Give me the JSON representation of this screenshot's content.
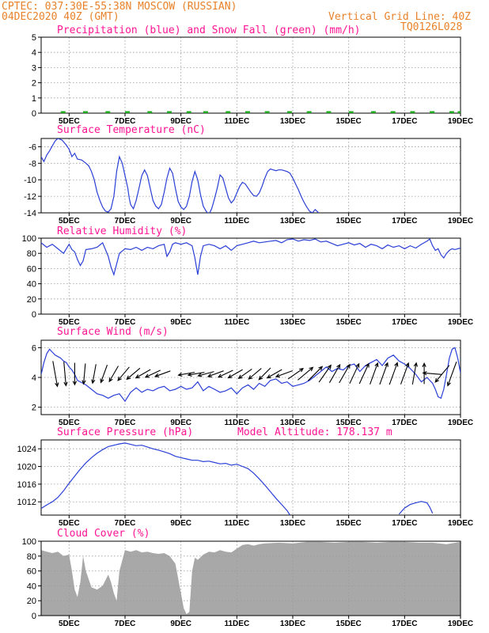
{
  "header": {
    "line1_left": "CPTEC:  037:30E-55:38N  MOSCOW (RUSSIAN)",
    "line2_left": "04DEC2020 40Z (GMT)",
    "line2_right": "Vertical Grid Line: 40Z",
    "code": "TQ0126L028"
  },
  "x_axis": {
    "domain": [
      4.0,
      19.0
    ],
    "ticks": [
      {
        "day": 5,
        "label": "5DEC"
      },
      {
        "day": 7,
        "label": "7DEC"
      },
      {
        "day": 9,
        "label": "9DEC"
      },
      {
        "day": 11,
        "label": "11DEC"
      },
      {
        "day": 13,
        "label": "13DEC"
      },
      {
        "day": 15,
        "label": "15DEC"
      },
      {
        "day": 17,
        "label": "17DEC"
      },
      {
        "day": 19,
        "label": "19DEC"
      }
    ]
  },
  "colors": {
    "line": "#2a3fd6",
    "snow": "#1faa1f",
    "title": "#ff1493",
    "header": "#e8822a",
    "cloud": "#a8a8a8"
  },
  "chart_data": [
    {
      "type": "bar",
      "title": "Precipitation (blue) and Snow Fall (green) (mm/h)",
      "ylim": [
        0,
        5
      ],
      "yticks": [
        0,
        1,
        2,
        3,
        4,
        5
      ],
      "snow_series": {
        "name": "Snow Fall",
        "x": [
          4.7,
          5.5,
          6.3,
          7.0,
          7.8,
          8.5,
          9.2,
          9.8,
          10.6,
          11.3,
          12.0,
          12.8,
          13.5,
          14.2,
          15.0,
          15.8,
          16.5,
          17.2,
          17.9,
          18.6,
          18.9
        ],
        "values": [
          0.02,
          0.03,
          0.02,
          0.02,
          0.03,
          0.02,
          0.02,
          0.02,
          0.02,
          0.03,
          0.02,
          0.02,
          0.02,
          0.02,
          0.02,
          0.02,
          0.02,
          0.02,
          0.02,
          0.03,
          0.05
        ]
      }
    },
    {
      "type": "line",
      "title": "Surface Temperature (nC)",
      "ylim": [
        -14,
        -5
      ],
      "yticks": [
        -14,
        -12,
        -10,
        -8,
        -6
      ],
      "series": [
        {
          "x": [
            4.0,
            4.1,
            4.2,
            4.3,
            4.4,
            4.5,
            4.6,
            4.75,
            4.9,
            5.0,
            5.1,
            5.2,
            5.3,
            5.45,
            5.6,
            5.7,
            5.8,
            5.9,
            6.0,
            6.1,
            6.2,
            6.3,
            6.4,
            6.5,
            6.6,
            6.7,
            6.8,
            6.9,
            7.0,
            7.1,
            7.15,
            7.2,
            7.3,
            7.4,
            7.5,
            7.6,
            7.7,
            7.8,
            7.9,
            8.0,
            8.1,
            8.2,
            8.3,
            8.4,
            8.5,
            8.6,
            8.7,
            8.8,
            8.9,
            9.0,
            9.1,
            9.2,
            9.3,
            9.4,
            9.5,
            9.6,
            9.7,
            9.8,
            9.9,
            10.0,
            10.1,
            10.2,
            10.3,
            10.4,
            10.5,
            10.6,
            10.7,
            10.8,
            10.9,
            11.0,
            11.1,
            11.2,
            11.3,
            11.4,
            11.5,
            11.6,
            11.7,
            11.8,
            11.9,
            12.0,
            12.1,
            12.2,
            12.3,
            12.4,
            12.5,
            12.6,
            12.7,
            12.8,
            12.9,
            13.0,
            13.1,
            13.2,
            13.3,
            13.4,
            13.5,
            13.6,
            13.7,
            13.8,
            13.9,
            14.0
          ],
          "values": [
            -7.2,
            -7.8,
            -7.0,
            -6.5,
            -5.9,
            -5.3,
            -5.0,
            -5.2,
            -5.8,
            -6.3,
            -7.2,
            -6.8,
            -7.5,
            -7.6,
            -8.0,
            -8.3,
            -9.0,
            -10.0,
            -11.5,
            -12.5,
            -13.3,
            -13.8,
            -13.9,
            -13.5,
            -12.0,
            -9.0,
            -7.2,
            -8.0,
            -9.5,
            -11.0,
            -12.2,
            -13.0,
            -13.5,
            -12.5,
            -11.0,
            -9.5,
            -8.8,
            -9.5,
            -11.0,
            -12.5,
            -13.2,
            -13.5,
            -13.0,
            -11.5,
            -9.8,
            -8.6,
            -9.2,
            -11.0,
            -12.6,
            -13.3,
            -13.6,
            -13.2,
            -12.0,
            -10.2,
            -9.0,
            -10.0,
            -11.8,
            -13.2,
            -13.8,
            -14.2,
            -13.5,
            -12.3,
            -11.0,
            -9.4,
            -9.8,
            -11.0,
            -12.2,
            -12.8,
            -12.4,
            -11.6,
            -10.8,
            -10.3,
            -10.5,
            -11.0,
            -11.5,
            -11.9,
            -12.0,
            -11.6,
            -10.8,
            -9.8,
            -9.0,
            -8.7,
            -8.8,
            -8.9,
            -8.8,
            -8.8,
            -8.9,
            -9.0,
            -9.2,
            -9.8,
            -10.5,
            -11.2,
            -12.0,
            -12.7,
            -13.3,
            -13.8,
            -14.0,
            -13.6,
            -13.9,
            -14.5
          ]
        }
      ]
    },
    {
      "type": "line",
      "title": "Relative Humidity (%)",
      "ylim": [
        0,
        100
      ],
      "yticks": [
        0,
        20,
        40,
        60,
        80,
        100
      ],
      "series": [
        {
          "x": [
            4.0,
            4.2,
            4.4,
            4.6,
            4.8,
            5.0,
            5.1,
            5.2,
            5.3,
            5.4,
            5.5,
            5.6,
            5.8,
            6.0,
            6.2,
            6.4,
            6.5,
            6.6,
            6.7,
            6.8,
            7.0,
            7.2,
            7.4,
            7.6,
            7.8,
            8.0,
            8.2,
            8.4,
            8.5,
            8.6,
            8.7,
            8.8,
            9.0,
            9.2,
            9.4,
            9.5,
            9.6,
            9.7,
            9.8,
            10.0,
            10.2,
            10.4,
            10.6,
            10.8,
            11.0,
            11.2,
            11.4,
            11.6,
            11.8,
            12.0,
            12.2,
            12.4,
            12.6,
            12.8,
            13.0,
            13.2,
            13.4,
            13.6,
            13.8,
            14.0,
            14.2,
            14.4,
            14.6,
            14.8,
            15.0,
            15.2,
            15.4,
            15.6,
            15.8,
            16.0,
            16.2,
            16.4,
            16.6,
            16.8,
            17.0,
            17.2,
            17.4,
            17.6,
            17.8,
            17.9,
            18.0,
            18.1,
            18.2,
            18.3,
            18.4,
            18.5,
            18.6,
            18.7,
            18.8,
            19.0
          ],
          "values": [
            94,
            88,
            92,
            86,
            80,
            92,
            85,
            82,
            72,
            64,
            70,
            85,
            86,
            88,
            94,
            76,
            62,
            52,
            66,
            80,
            86,
            85,
            88,
            84,
            88,
            86,
            90,
            92,
            76,
            82,
            92,
            94,
            92,
            94,
            90,
            74,
            52,
            76,
            90,
            92,
            90,
            86,
            90,
            84,
            90,
            92,
            94,
            96,
            94,
            95,
            96,
            97,
            94,
            98,
            99,
            96,
            98,
            97,
            99,
            95,
            96,
            93,
            90,
            92,
            94,
            91,
            93,
            88,
            92,
            90,
            86,
            91,
            88,
            90,
            86,
            90,
            87,
            92,
            96,
            99,
            90,
            84,
            86,
            78,
            74,
            80,
            84,
            86,
            85,
            87
          ]
        }
      ]
    },
    {
      "type": "line",
      "title": "Surface Wind (m/s)",
      "ylim": [
        1.5,
        6.5
      ],
      "yticks": [
        2,
        4,
        6
      ],
      "series": [
        {
          "x": [
            4.0,
            4.1,
            4.2,
            4.3,
            4.4,
            4.5,
            4.6,
            4.7,
            4.8,
            4.9,
            5.0,
            5.1,
            5.2,
            5.3,
            5.4,
            5.5,
            5.6,
            5.8,
            6.0,
            6.2,
            6.4,
            6.6,
            6.8,
            7.0,
            7.2,
            7.4,
            7.6,
            7.8,
            8.0,
            8.2,
            8.4,
            8.6,
            8.8,
            9.0,
            9.2,
            9.4,
            9.6,
            9.8,
            10.0,
            10.2,
            10.4,
            10.6,
            10.8,
            11.0,
            11.2,
            11.4,
            11.6,
            11.8,
            12.0,
            12.2,
            12.4,
            12.6,
            12.8,
            13.0,
            13.2,
            13.4,
            13.6,
            13.8,
            14.0,
            14.2,
            14.4,
            14.6,
            14.8,
            15.0,
            15.2,
            15.4,
            15.6,
            15.8,
            16.0,
            16.2,
            16.4,
            16.6,
            16.8,
            17.0,
            17.2,
            17.4,
            17.6,
            17.8,
            18.0,
            18.1,
            18.2,
            18.3,
            18.4,
            18.5,
            18.6,
            18.7,
            18.8,
            18.9,
            19.0
          ],
          "values": [
            4.2,
            5.0,
            5.6,
            5.9,
            5.7,
            5.5,
            5.4,
            5.3,
            5.1,
            5.0,
            4.7,
            4.5,
            4.2,
            3.8,
            3.7,
            3.6,
            3.5,
            3.2,
            2.9,
            2.8,
            2.6,
            2.8,
            2.9,
            2.4,
            3.0,
            3.3,
            3.0,
            3.2,
            3.1,
            3.3,
            3.4,
            3.1,
            3.2,
            3.4,
            3.2,
            3.3,
            3.7,
            3.1,
            3.4,
            3.2,
            3.0,
            3.1,
            3.3,
            2.9,
            3.3,
            3.5,
            3.2,
            3.6,
            3.4,
            3.8,
            3.9,
            3.6,
            3.7,
            3.4,
            3.5,
            3.6,
            3.8,
            4.1,
            4.4,
            4.7,
            4.4,
            4.6,
            4.5,
            4.8,
            4.9,
            4.4,
            4.8,
            5.0,
            5.2,
            4.8,
            5.3,
            5.5,
            5.1,
            4.9,
            4.6,
            4.2,
            3.7,
            4.0,
            3.6,
            3.2,
            2.7,
            2.6,
            3.2,
            4.2,
            5.3,
            5.9,
            6.0,
            5.3,
            4.3
          ]
        }
      ],
      "wind_vectors": {
        "x": [
          4.5,
          4.85,
          5.2,
          5.55,
          5.9,
          6.25,
          6.6,
          6.95,
          7.3,
          7.65,
          8.0,
          8.35,
          9.2,
          9.55,
          9.9,
          10.25,
          10.6,
          10.95,
          11.3,
          11.65,
          12.0,
          12.35,
          12.7,
          13.1,
          13.45,
          13.8,
          14.15,
          14.5,
          14.85,
          15.2,
          15.55,
          15.9,
          16.25,
          16.6,
          17.0,
          17.35,
          17.7,
          18.0,
          18.35,
          18.7
        ],
        "magnitude": [
          5.9,
          5.4,
          4.8,
          4.4,
          4.1,
          3.9,
          3.7,
          3.6,
          3.5,
          3.4,
          3.3,
          3.2,
          3.3,
          3.3,
          3.3,
          3.3,
          3.2,
          3.3,
          3.2,
          3.3,
          3.3,
          3.4,
          3.6,
          3.8,
          4.2,
          4.3,
          4.5,
          4.5,
          4.6,
          4.8,
          4.9,
          5.0,
          5.1,
          5.2,
          5.0,
          4.8,
          4.5,
          4.0,
          4.8,
          5.8
        ],
        "direction_deg": [
          170,
          175,
          180,
          185,
          190,
          200,
          210,
          220,
          230,
          240,
          245,
          250,
          260,
          260,
          255,
          250,
          245,
          240,
          235,
          230,
          225,
          240,
          250,
          55,
          50,
          45,
          35,
          30,
          30,
          25,
          25,
          20,
          20,
          20,
          20,
          10,
          0,
          275,
          220,
          200
        ]
      }
    },
    {
      "type": "line",
      "title": "Surface Pressure (hPa)",
      "annotation": "Model Altitude: 178.137 m",
      "ylim": [
        1009,
        1026
      ],
      "yticks": [
        1012,
        1016,
        1020,
        1024
      ],
      "series": [
        {
          "x": [
            4.0,
            4.2,
            4.4,
            4.6,
            4.8,
            5.0,
            5.2,
            5.4,
            5.6,
            5.8,
            6.0,
            6.2,
            6.4,
            6.6,
            6.8,
            7.0,
            7.2,
            7.4,
            7.6,
            7.8,
            8.0,
            8.2,
            8.4,
            8.6,
            8.8,
            9.0,
            9.2,
            9.4,
            9.6,
            9.8,
            10.0,
            10.2,
            10.4,
            10.6,
            10.8,
            11.0,
            11.2,
            11.4,
            11.6,
            11.8,
            12.0,
            12.2,
            12.4,
            12.6,
            12.8,
            12.9
          ],
          "values": [
            1010.5,
            1011.3,
            1012.0,
            1013.0,
            1014.5,
            1016.2,
            1017.8,
            1019.4,
            1020.8,
            1022.0,
            1023.0,
            1023.8,
            1024.5,
            1024.8,
            1025.1,
            1025.3,
            1025.0,
            1024.7,
            1024.8,
            1024.4,
            1024.0,
            1023.7,
            1023.3,
            1022.9,
            1022.3,
            1022.0,
            1021.7,
            1021.4,
            1021.4,
            1021.1,
            1021.2,
            1020.9,
            1020.6,
            1020.7,
            1020.3,
            1020.5,
            1020.0,
            1019.5,
            1018.5,
            1017.2,
            1015.8,
            1014.3,
            1012.8,
            1011.4,
            1010.0,
            1009.0
          ]
        },
        {
          "x": [
            16.8,
            17.0,
            17.2,
            17.4,
            17.6,
            17.8,
            17.9,
            18.0
          ],
          "values": [
            1009.2,
            1010.6,
            1011.4,
            1011.8,
            1012.1,
            1011.8,
            1010.8,
            1009.4
          ]
        }
      ]
    },
    {
      "type": "area",
      "title": "Cloud Cover (%)",
      "ylim": [
        0,
        100
      ],
      "yticks": [
        0,
        20,
        40,
        60,
        80,
        100
      ],
      "series": [
        {
          "x": [
            4.0,
            4.2,
            4.4,
            4.6,
            4.8,
            5.0,
            5.1,
            5.2,
            5.3,
            5.4,
            5.5,
            5.6,
            5.8,
            6.0,
            6.2,
            6.4,
            6.5,
            6.6,
            6.7,
            6.8,
            7.0,
            7.2,
            7.4,
            7.6,
            7.8,
            8.0,
            8.2,
            8.4,
            8.6,
            8.8,
            9.0,
            9.1,
            9.2,
            9.3,
            9.4,
            9.5,
            9.6,
            9.8,
            10.0,
            10.2,
            10.4,
            10.6,
            10.8,
            11.0,
            11.2,
            11.4,
            11.6,
            11.8,
            12.0,
            12.5,
            13.0,
            13.5,
            14.0,
            14.5,
            15.0,
            15.5,
            16.0,
            16.5,
            17.0,
            17.5,
            18.0,
            18.5,
            19.0
          ],
          "values": [
            88,
            86,
            84,
            86,
            80,
            82,
            60,
            35,
            25,
            45,
            80,
            60,
            38,
            35,
            40,
            55,
            45,
            30,
            20,
            60,
            88,
            86,
            88,
            85,
            86,
            84,
            83,
            84,
            80,
            70,
            30,
            10,
            2,
            5,
            60,
            78,
            75,
            82,
            86,
            85,
            88,
            86,
            85,
            90,
            95,
            96,
            94,
            96,
            97,
            98,
            97,
            99,
            99,
            98,
            99,
            99,
            98,
            99,
            99,
            98,
            98,
            96,
            99
          ]
        }
      ]
    }
  ]
}
